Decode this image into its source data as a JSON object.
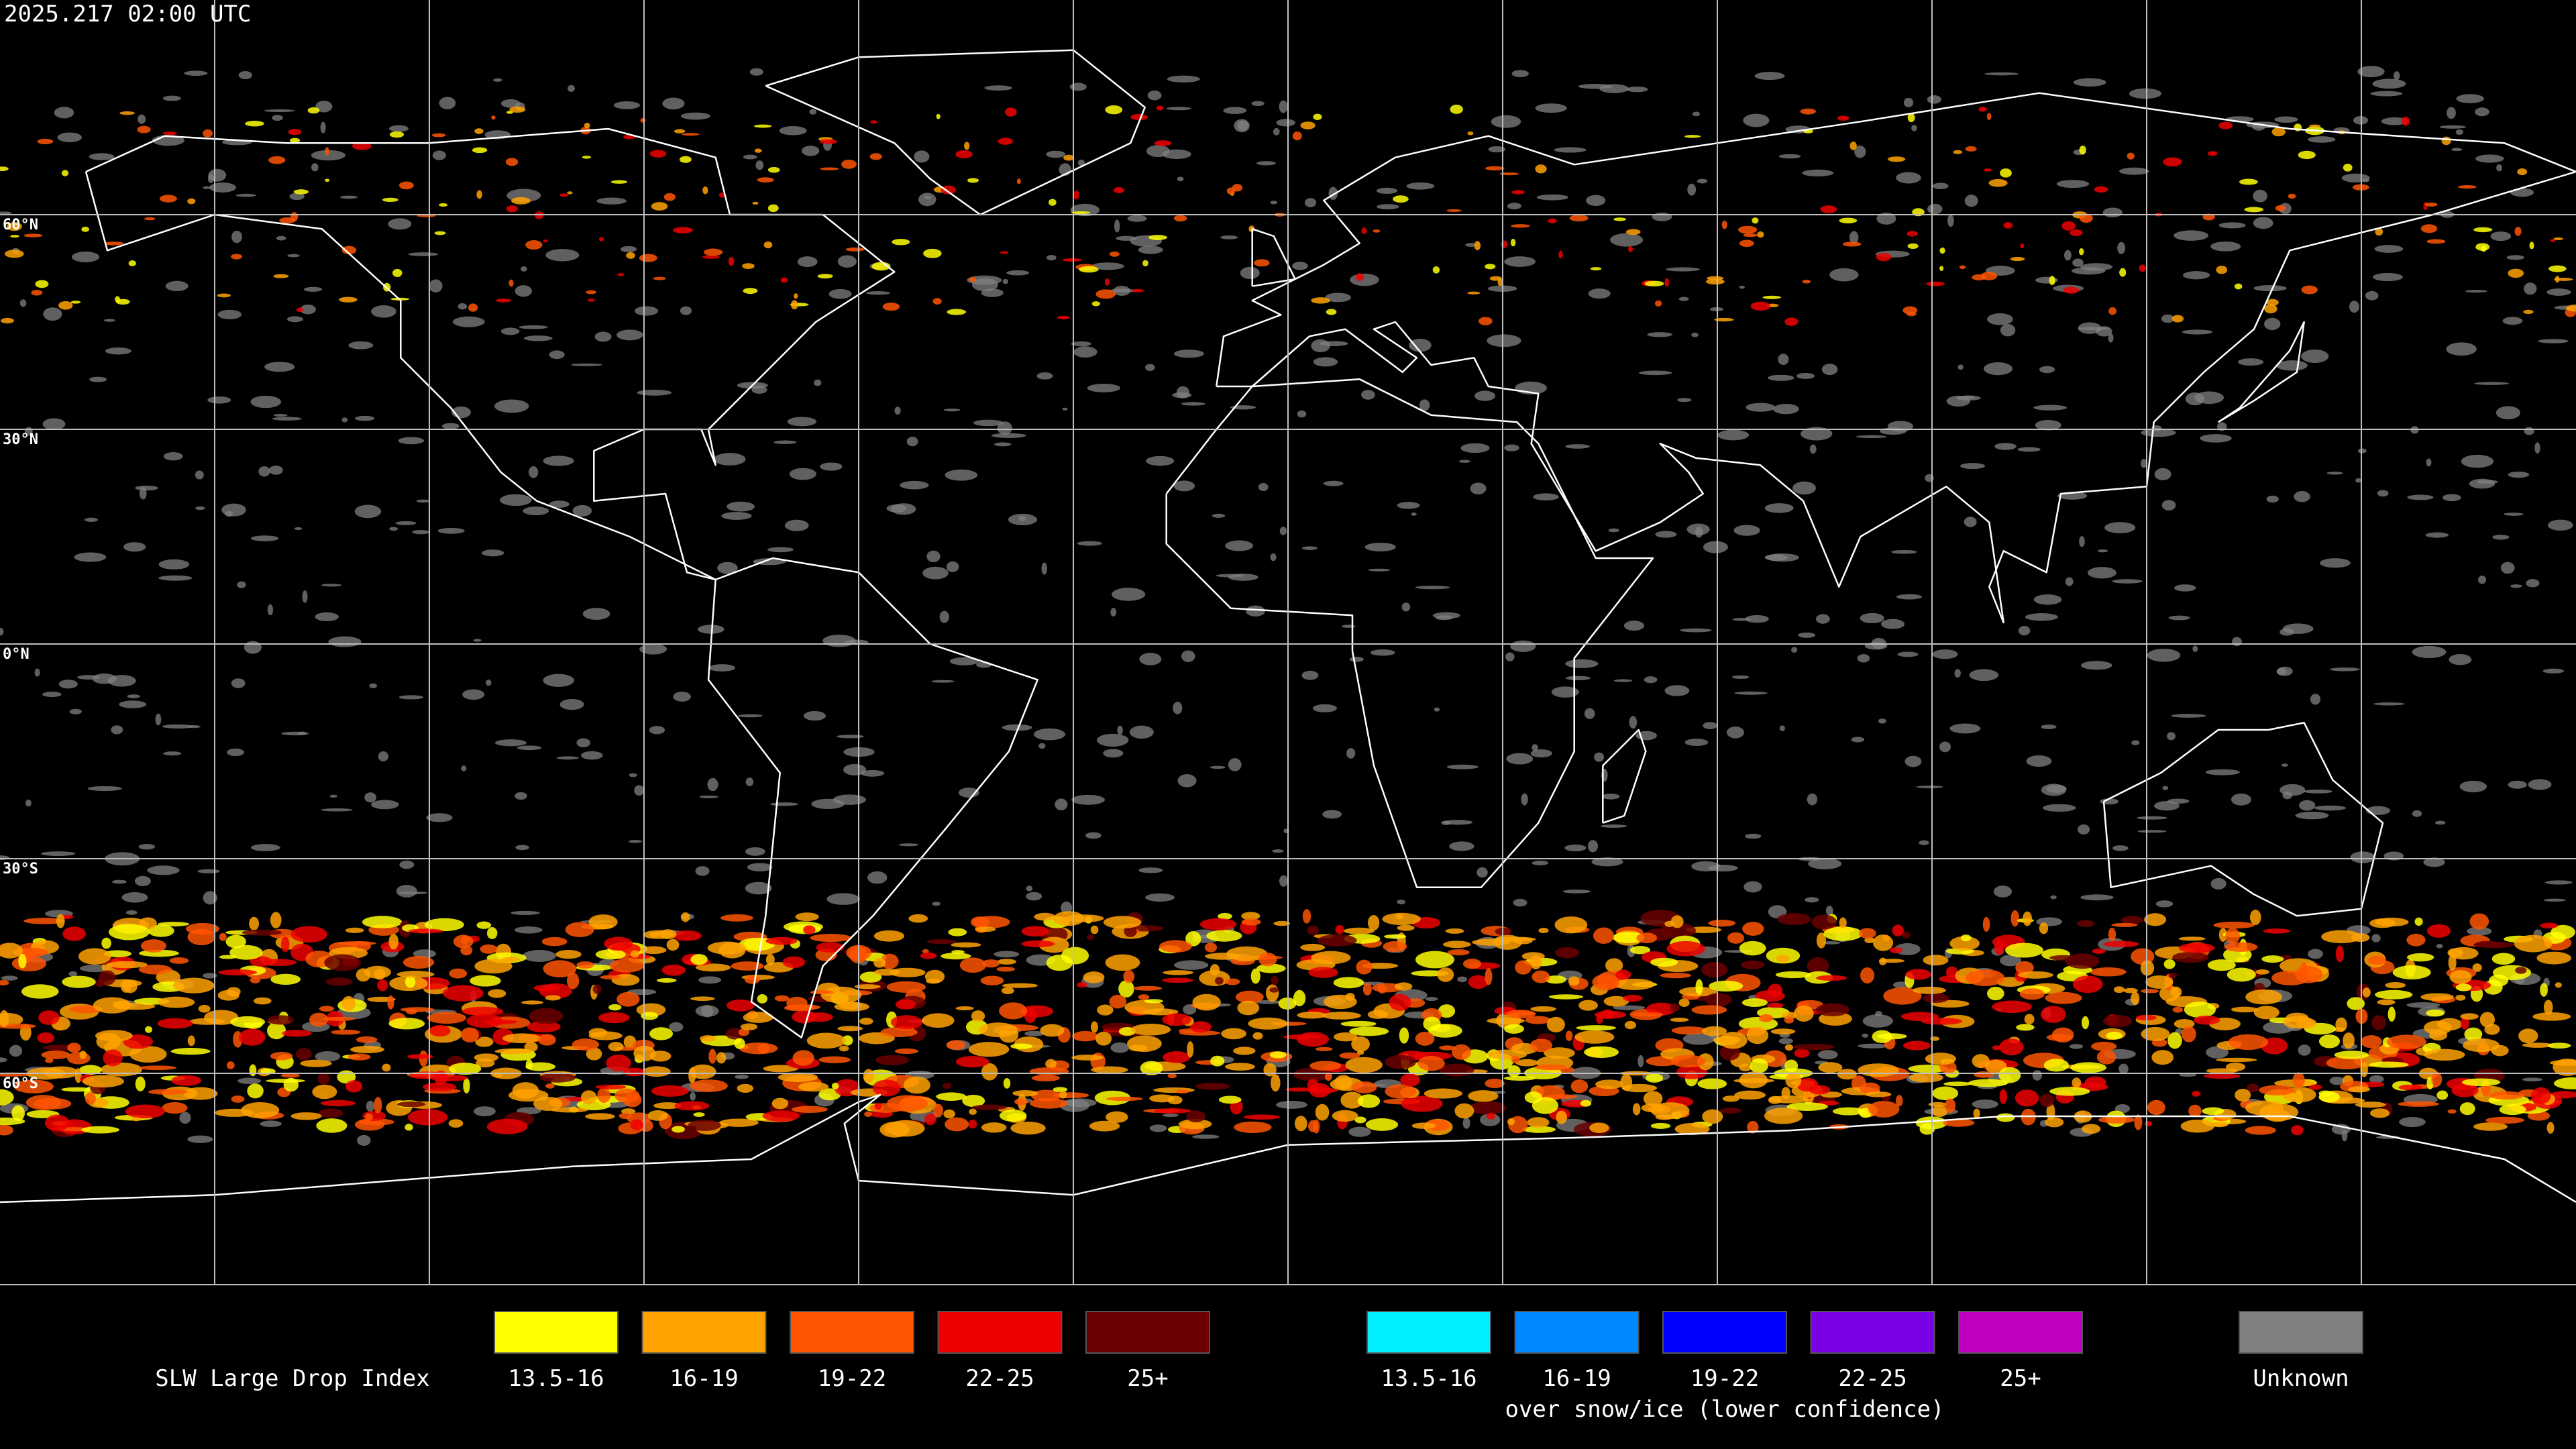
{
  "header": {
    "timestamp": "2025.217 02:00 UTC"
  },
  "map": {
    "lat_labels": [
      "60°N",
      "30°N",
      "0°N",
      "30°S",
      "60°S"
    ]
  },
  "legend": {
    "title": "SLW Large Drop Index",
    "primary": [
      {
        "label": "13.5-16",
        "color": "#ffff00"
      },
      {
        "label": "16-19",
        "color": "#ffa200"
      },
      {
        "label": "19-22",
        "color": "#ff5500"
      },
      {
        "label": "22-25",
        "color": "#ee0000"
      },
      {
        "label": "25+",
        "color": "#6a0000"
      }
    ],
    "snow_ice": [
      {
        "label": "13.5-16",
        "color": "#00f0ff"
      },
      {
        "label": "16-19",
        "color": "#0088ff"
      },
      {
        "label": "19-22",
        "color": "#0000ff"
      },
      {
        "label": "22-25",
        "color": "#7a00e6"
      },
      {
        "label": "25+",
        "color": "#c000c0"
      }
    ],
    "snow_ice_caption": "over snow/ice (lower confidence)",
    "unknown": {
      "label": "Unknown",
      "color": "#808080"
    }
  }
}
